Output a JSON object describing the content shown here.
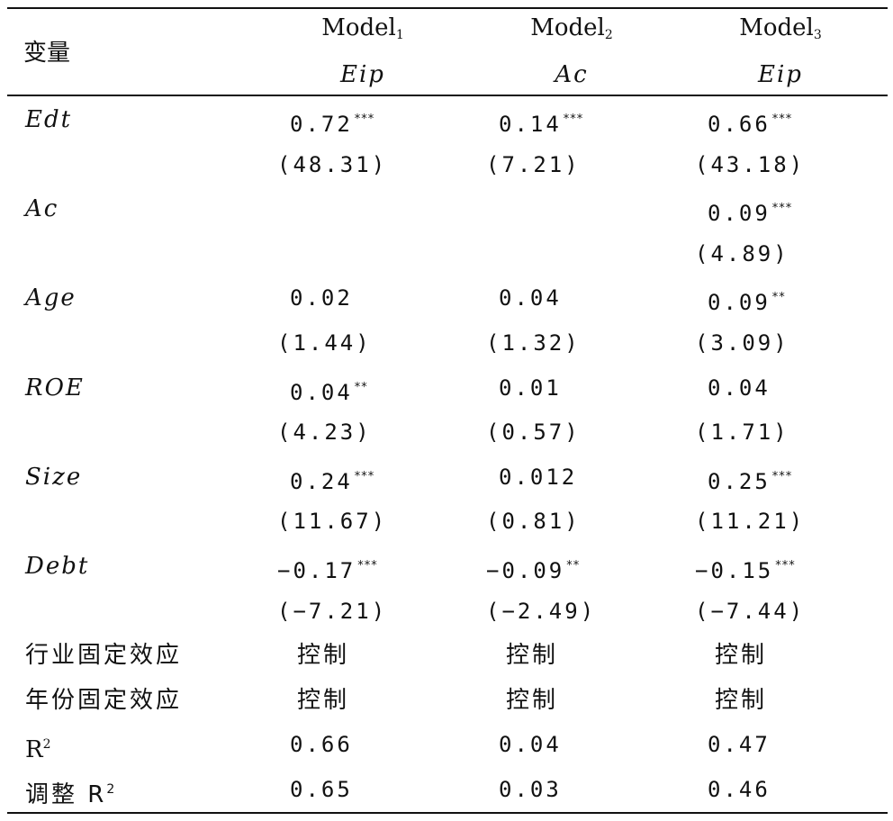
{
  "header": {
    "variable_label": "变量",
    "models": [
      {
        "name": "Model",
        "sub": "1",
        "dep": "Eip"
      },
      {
        "name": "Model",
        "sub": "2",
        "dep": "Ac"
      },
      {
        "name": "Model",
        "sub": "3",
        "dep": "Eip"
      }
    ]
  },
  "rows": [
    {
      "var": "Edt",
      "italic": true,
      "c1": "0.72",
      "s1": "***",
      "c2": "0.14",
      "s2": "***",
      "c3": "0.66",
      "s3": "***"
    },
    {
      "var": "",
      "c1": "(48.31)",
      "c2": "(7.21)",
      "c3": "(43.18)"
    },
    {
      "var": "Ac",
      "italic": true,
      "c1": "",
      "c2": "",
      "c3": "0.09",
      "s3": "***"
    },
    {
      "var": "",
      "c1": "",
      "c2": "",
      "c3": "(4.89)"
    },
    {
      "var": "Age",
      "italic": true,
      "c1": "0.02",
      "c2": "0.04",
      "c3": "0.09",
      "s3": "**"
    },
    {
      "var": "",
      "c1": "(1.44)",
      "c2": "(1.32)",
      "c3": "(3.09)"
    },
    {
      "var": "ROE",
      "italic": true,
      "c1": "0.04",
      "s1": "**",
      "c2": "0.01",
      "c3": "0.04"
    },
    {
      "var": "",
      "c1": "(4.23)",
      "c2": "(0.57)",
      "c3": "(1.71)"
    },
    {
      "var": "Size",
      "italic": true,
      "c1": "0.24",
      "s1": "***",
      "c2": "0.012",
      "c3": "0.25",
      "s3": "***"
    },
    {
      "var": "",
      "c1": "(11.67)",
      "c2": "(0.81)",
      "c3": "(11.21)"
    },
    {
      "var": "Debt",
      "italic": true,
      "c1": "−0.17",
      "s1": "***",
      "c2": "−0.09",
      "s2": "**",
      "c3": "−0.15",
      "s3": "***"
    },
    {
      "var": "",
      "c1": "(−7.21)",
      "c2": "(−2.49)",
      "c3": "(−7.44)"
    },
    {
      "var": "行业固定效应",
      "cjk": true,
      "c1": "控制",
      "c2": "控制",
      "c3": "控制"
    },
    {
      "var": "年份固定效应",
      "cjk": true,
      "c1": "控制",
      "c2": "控制",
      "c3": "控制"
    },
    {
      "var": "R",
      "var_sup": "2",
      "c1": "0.66",
      "c2": "0.04",
      "c3": "0.47"
    },
    {
      "var": "调整 R",
      "var_sup": "2",
      "cjk": true,
      "c1": "0.65",
      "c2": "0.03",
      "c3": "0.46"
    }
  ]
}
